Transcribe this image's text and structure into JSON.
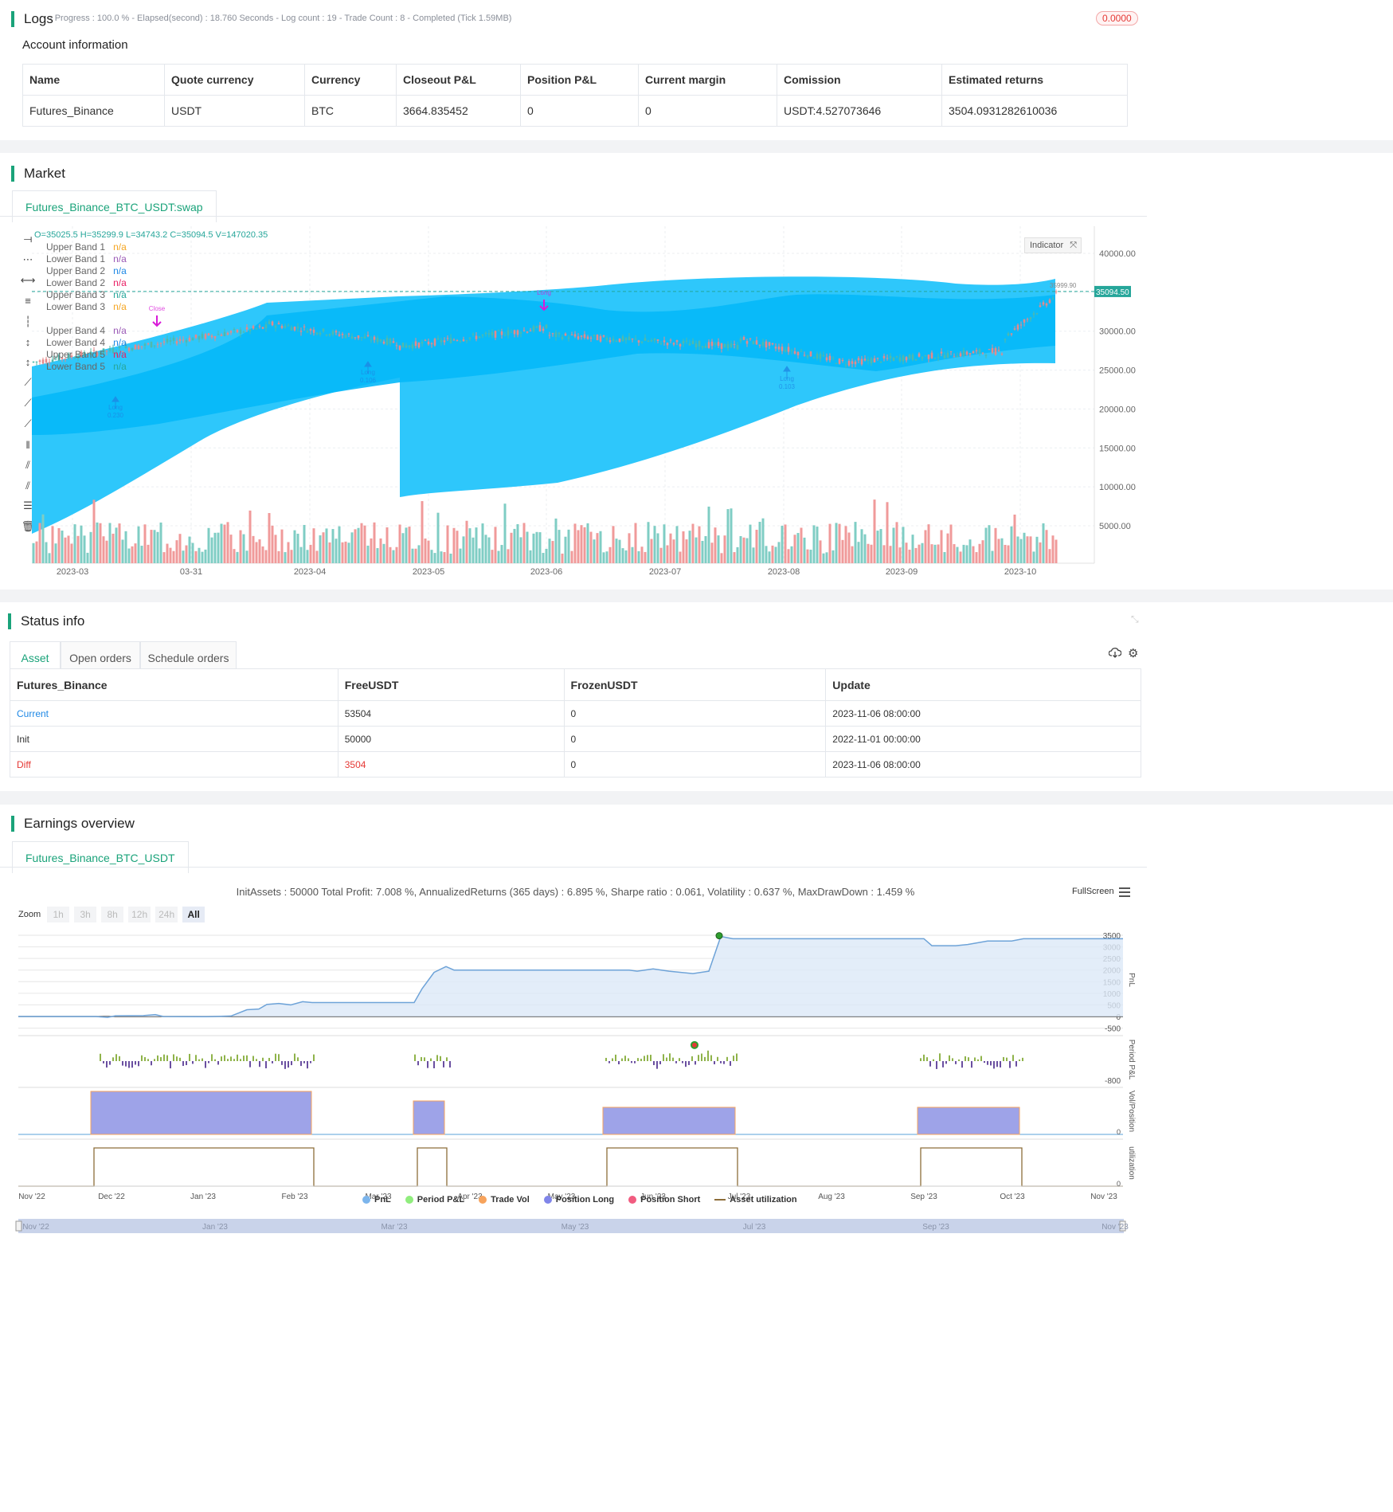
{
  "logs": {
    "title": "Logs",
    "summary": "- Progress : 100.0 % - Elapsed(second) : 18.760  Seconds - Log count : 19 - Trade Count : 8 - Completed (Tick 1.59MB)",
    "badge": "0.0000"
  },
  "account": {
    "title": "Account information",
    "headers": [
      "Name",
      "Quote currency",
      "Currency",
      "Closeout P&L",
      "Position P&L",
      "Current margin",
      "Comission",
      "Estimated returns"
    ],
    "row": [
      "Futures_Binance",
      "USDT",
      "BTC",
      "3664.835452",
      "0",
      "0",
      "USDT:4.527073646",
      "3504.0931282610036"
    ]
  },
  "market": {
    "title": "Market",
    "tab": "Futures_Binance_BTC_USDT:swap",
    "ohlc": "O=35025.5 H=35299.9 L=34743.2 C=35094.5 V=147020.35",
    "indicator_btn": "Indicator",
    "price_tag": "35094.50",
    "high_label": "35999.90",
    "legend": [
      {
        "name": "Upper Band 1",
        "value": "n/a",
        "color": "#f5a623"
      },
      {
        "name": "Lower Band 1",
        "value": "n/a",
        "color": "#9b59b6"
      },
      {
        "name": "Upper Band 2",
        "value": "n/a",
        "color": "#1e88e5"
      },
      {
        "name": "Lower Band 2",
        "value": "n/a",
        "color": "#e91e63"
      },
      {
        "name": "Upper Band 3",
        "value": "n/a",
        "color": "#26a69a"
      },
      {
        "name": "Lower Band 3",
        "value": "n/a",
        "color": "#f5a623"
      },
      {
        "name": "Upper Band 4",
        "value": "n/a",
        "color": "#9b59b6"
      },
      {
        "name": "Lower Band 4",
        "value": "n/a",
        "color": "#1e88e5"
      },
      {
        "name": "Upper Band 5",
        "value": "n/a",
        "color": "#e91e63"
      },
      {
        "name": "Lower Band 5",
        "value": "n/a",
        "color": "#26a69a"
      }
    ],
    "y_ticks": [
      "40000.00",
      "35000.00",
      "30000.00",
      "25000.00",
      "20000.00",
      "15000.00",
      "10000.00",
      "5000.00"
    ],
    "x_ticks": [
      "2023-03",
      "03-31",
      "2023-04",
      "2023-05",
      "2023-06",
      "2023-07",
      "2023-08",
      "2023-09",
      "2023-10"
    ],
    "trade_labels": [
      "Long",
      "0.230",
      "Long",
      "0.106",
      "Long",
      "0.103",
      "Long",
      "Close"
    ]
  },
  "status": {
    "title": "Status info",
    "tabs": [
      "Asset",
      "Open orders",
      "Schedule orders"
    ],
    "headers": [
      "Futures_Binance",
      "FreeUSDT",
      "FrozenUSDT",
      "Update"
    ],
    "rows": [
      [
        "Current",
        "53504",
        "0",
        "2023-11-06 08:00:00"
      ],
      [
        "Init",
        "50000",
        "0",
        "2022-11-01 00:00:00"
      ],
      [
        "Diff",
        "3504",
        "0",
        "2023-11-06 08:00:00"
      ]
    ]
  },
  "earnings": {
    "title": "Earnings overview",
    "tab": "Futures_Binance_BTC_USDT",
    "summary": "InitAssets : 50000 Total Profit: 7.008 %, AnnualizedReturns (365 days) : 6.895 %, Sharpe ratio : 0.061, Volatility : 0.637 %, MaxDrawDown : 1.459 %",
    "fullscreen": "FullScreen",
    "zoom_label": "Zoom",
    "zoom_buttons": [
      "1h",
      "3h",
      "8h",
      "12h",
      "24h",
      "All"
    ],
    "pnl_ticks": [
      "3500",
      "3000",
      "2500",
      "2000",
      "1500",
      "1000",
      "500",
      "0",
      "-500"
    ],
    "period_tick": "-800",
    "axis_titles": [
      "PnL",
      "Period P&L",
      "Vol/Position",
      "utilization"
    ],
    "x_ticks": [
      "Nov '22",
      "Dec '22",
      "Jan '23",
      "Feb '23",
      "Mar '23",
      "Apr '23",
      "May '23",
      "Jun '23",
      "Jul '23",
      "Aug '23",
      "Sep '23",
      "Oct '23",
      "Nov '23"
    ],
    "legend": [
      {
        "name": "PnL",
        "color": "#7cb5ec"
      },
      {
        "name": "Period P&L",
        "color": "#90ed7d"
      },
      {
        "name": "Trade Vol",
        "color": "#f7a35c"
      },
      {
        "name": "Position Long",
        "color": "#8085e9"
      },
      {
        "name": "Position Short",
        "color": "#f15c80"
      },
      {
        "name": "Asset utilization",
        "color": "#8d6e3a"
      }
    ],
    "nav_ticks": [
      "Nov '22",
      "Jan '23",
      "Mar '23",
      "May '23",
      "Jul '23",
      "Sep '23",
      "Nov '23"
    ]
  }
}
